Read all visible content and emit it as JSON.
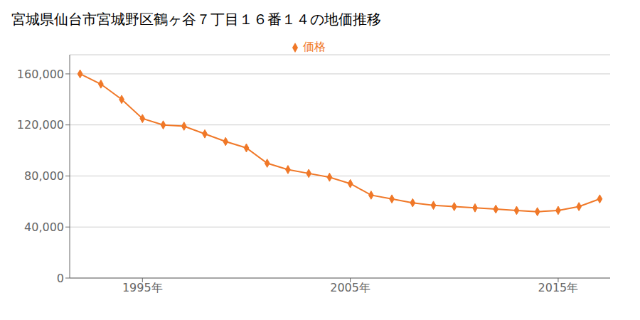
{
  "chart_data": {
    "type": "line",
    "title": "宮城県仙台市宮城野区鶴ヶ谷７丁目１６番１４の地価推移",
    "legend": "top",
    "grid": "y",
    "x": [
      1992,
      1993,
      1994,
      1995,
      1996,
      1997,
      1998,
      1999,
      2000,
      2001,
      2002,
      2003,
      2004,
      2005,
      2006,
      2007,
      2008,
      2009,
      2010,
      2011,
      2012,
      2013,
      2014,
      2015,
      2016,
      2017
    ],
    "series": [
      {
        "name": "価格",
        "color": "#f07828",
        "marker": "diamond",
        "values": [
          160000,
          152000,
          140000,
          125000,
          120000,
          119000,
          113000,
          107000,
          102000,
          90000,
          85000,
          82000,
          79000,
          74000,
          65000,
          62000,
          59000,
          57000,
          56000,
          55000,
          54000,
          53000,
          52000,
          53000,
          56000,
          62000
        ]
      }
    ],
    "xlim": [
      1991.5,
      2017.5
    ],
    "xticks": [
      {
        "value": 1995,
        "label": "1995年"
      },
      {
        "value": 2005,
        "label": "2005年"
      },
      {
        "value": 2015,
        "label": "2015年"
      }
    ],
    "ylim": [
      0,
      175000
    ],
    "yticks": [
      0,
      {
        "value": 40000,
        "label": "40,000"
      },
      {
        "value": 80000,
        "label": "80,000"
      },
      {
        "value": 120000,
        "label": "120,000"
      },
      {
        "value": 160000,
        "label": "160,000"
      }
    ]
  }
}
